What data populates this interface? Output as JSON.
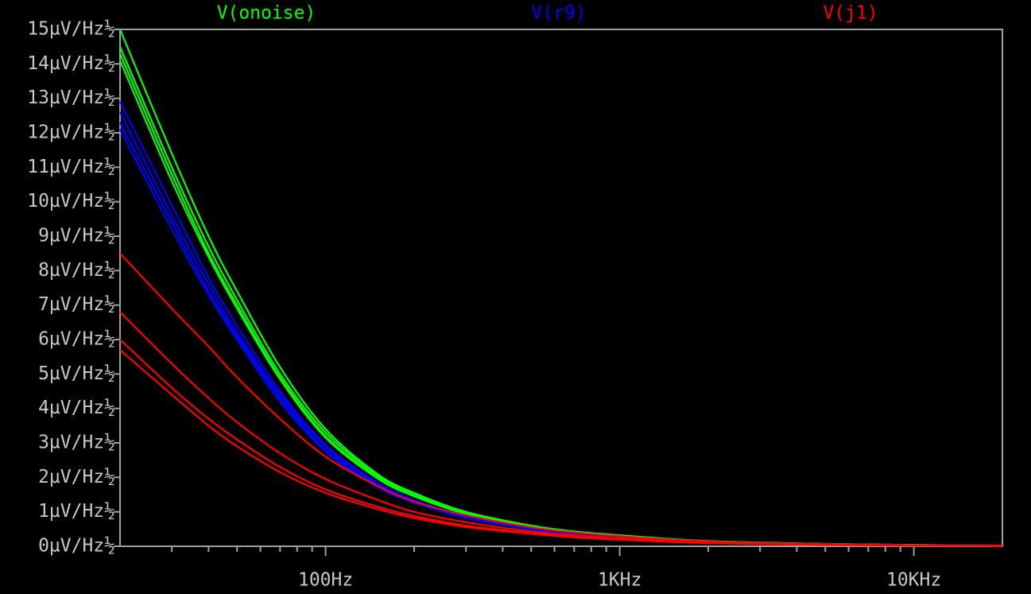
{
  "chart_data": {
    "type": "line",
    "x": [
      20,
      30,
      40,
      50,
      70,
      100,
      150,
      200,
      300,
      500,
      700,
      1000,
      2000,
      5000,
      10000,
      20000
    ],
    "xlim": [
      20,
      20000
    ],
    "xscale": "log",
    "xticks": [
      {
        "value": 100,
        "label": "100Hz"
      },
      {
        "value": 1000,
        "label": "1KHz"
      },
      {
        "value": 10000,
        "label": "10KHz"
      }
    ],
    "minor_xticks": [
      30,
      40,
      50,
      60,
      70,
      80,
      90,
      200,
      300,
      400,
      500,
      600,
      700,
      800,
      900,
      2000,
      3000,
      4000,
      5000,
      6000,
      7000,
      8000,
      9000
    ],
    "ylim": [
      0,
      15
    ],
    "yticks": [
      {
        "value": 0,
        "label": "0µV/Hz½"
      },
      {
        "value": 1,
        "label": "1µV/Hz½"
      },
      {
        "value": 2,
        "label": "2µV/Hz½"
      },
      {
        "value": 3,
        "label": "3µV/Hz½"
      },
      {
        "value": 4,
        "label": "4µV/Hz½"
      },
      {
        "value": 5,
        "label": "5µV/Hz½"
      },
      {
        "value": 6,
        "label": "6µV/Hz½"
      },
      {
        "value": 7,
        "label": "7µV/Hz½"
      },
      {
        "value": 8,
        "label": "8µV/Hz½"
      },
      {
        "value": 9,
        "label": "9µV/Hz½"
      },
      {
        "value": 10,
        "label": "10µV/Hz½"
      },
      {
        "value": 11,
        "label": "11µV/Hz½"
      },
      {
        "value": 12,
        "label": "12µV/Hz½"
      },
      {
        "value": 13,
        "label": "13µV/Hz½"
      },
      {
        "value": 14,
        "label": "14µV/Hz½"
      },
      {
        "value": 15,
        "label": "15µV/Hz½"
      }
    ],
    "series": [
      {
        "name": "V(onoise)",
        "color": "#00ff00",
        "values": [
          [
            15.0,
            11.4,
            9.0,
            7.4,
            5.2,
            3.4,
            2.1,
            1.55,
            1.0,
            0.6,
            0.43,
            0.32,
            0.15,
            0.07,
            0.04,
            0.02
          ],
          [
            14.5,
            11.0,
            8.7,
            7.15,
            5.0,
            3.3,
            2.05,
            1.5,
            0.97,
            0.58,
            0.42,
            0.31,
            0.15,
            0.07,
            0.04,
            0.02
          ],
          [
            14.3,
            10.8,
            8.5,
            7.0,
            4.9,
            3.2,
            2.0,
            1.47,
            0.95,
            0.57,
            0.41,
            0.3,
            0.14,
            0.06,
            0.03,
            0.02
          ],
          [
            14.1,
            10.6,
            8.4,
            6.9,
            4.85,
            3.15,
            1.97,
            1.45,
            0.94,
            0.56,
            0.4,
            0.3,
            0.14,
            0.06,
            0.03,
            0.02
          ]
        ]
      },
      {
        "name": "V(r9)",
        "color": "#0000ff",
        "values": [
          [
            12.9,
            9.9,
            7.8,
            6.4,
            4.5,
            2.95,
            1.85,
            1.35,
            0.88,
            0.52,
            0.38,
            0.28,
            0.13,
            0.06,
            0.03,
            0.02
          ],
          [
            12.6,
            9.6,
            7.6,
            6.2,
            4.4,
            2.9,
            1.8,
            1.32,
            0.86,
            0.51,
            0.37,
            0.27,
            0.13,
            0.06,
            0.03,
            0.02
          ],
          [
            12.3,
            9.4,
            7.4,
            6.1,
            4.3,
            2.8,
            1.75,
            1.3,
            0.84,
            0.5,
            0.36,
            0.27,
            0.13,
            0.06,
            0.03,
            0.02
          ],
          [
            12.1,
            9.2,
            7.3,
            6.0,
            4.2,
            2.75,
            1.72,
            1.27,
            0.82,
            0.49,
            0.35,
            0.26,
            0.12,
            0.05,
            0.03,
            0.02
          ]
        ]
      },
      {
        "name": "V(j1)",
        "color": "#ff0000",
        "values": [
          [
            8.5,
            6.9,
            5.8,
            4.9,
            3.7,
            2.6,
            1.75,
            1.3,
            0.9,
            0.55,
            0.4,
            0.29,
            0.14,
            0.06,
            0.03,
            0.015
          ],
          [
            6.8,
            5.3,
            4.3,
            3.6,
            2.7,
            1.95,
            1.35,
            1.0,
            0.7,
            0.43,
            0.32,
            0.23,
            0.11,
            0.05,
            0.025,
            0.012
          ],
          [
            6.0,
            4.6,
            3.7,
            3.1,
            2.3,
            1.65,
            1.15,
            0.88,
            0.6,
            0.38,
            0.28,
            0.2,
            0.1,
            0.04,
            0.02,
            0.01
          ],
          [
            5.7,
            4.4,
            3.5,
            2.9,
            2.15,
            1.55,
            1.08,
            0.82,
            0.56,
            0.36,
            0.26,
            0.19,
            0.09,
            0.04,
            0.02,
            0.01
          ]
        ]
      }
    ]
  }
}
